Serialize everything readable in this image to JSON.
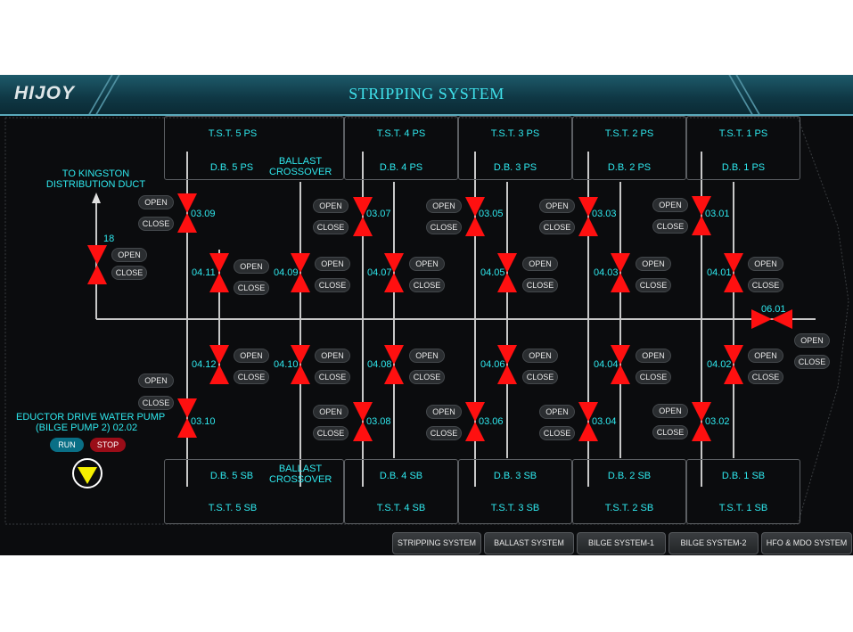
{
  "header": {
    "logo": "HIJOY",
    "title": "STRIPPING SYSTEM"
  },
  "tanks": {
    "tst_ps": [
      "T.S.T. 5 PS",
      "T.S.T. 4 PS",
      "T.S.T. 3 PS",
      "T.S.T. 2 PS",
      "T.S.T. 1 PS"
    ],
    "db_ps": [
      "D.B. 5 PS",
      "D.B. 4 PS",
      "D.B. 3 PS",
      "D.B. 2 PS",
      "D.B. 1 PS"
    ],
    "db_sb": [
      "D.B. 5 SB",
      "D.B. 4 SB",
      "D.B. 3 SB",
      "D.B. 2 SB",
      "D.B. 1 SB"
    ],
    "tst_sb": [
      "T.S.T. 5 SB",
      "T.S.T. 4 SB",
      "T.S.T. 3 SB",
      "T.S.T. 2 SB",
      "T.S.T. 1 SB"
    ],
    "ballast_crossover_top": [
      "BALLAST",
      "CROSSOVER"
    ],
    "ballast_crossover_bottom": [
      "BALLAST",
      "CROSSOVER"
    ]
  },
  "kingston": [
    "TO KINGSTON",
    "DISTRIBUTION DUCT"
  ],
  "valves": {
    "v18": "18",
    "v0309": "03.09",
    "v0307": "03.07",
    "v0305": "03.05",
    "v0303": "03.03",
    "v0301": "03.01",
    "v0411": "04.11",
    "v0409": "04.09",
    "v0407": "04.07",
    "v0405": "04.05",
    "v0403": "04.03",
    "v0401": "04.01",
    "v0601": "06.01",
    "v0412": "04.12",
    "v0410": "04.10",
    "v0408": "04.08",
    "v0406": "04.06",
    "v0404": "04.04",
    "v0402": "04.02",
    "v0310": "03.10",
    "v0308": "03.08",
    "v0306": "03.06",
    "v0304": "03.04",
    "v0302": "03.02"
  },
  "buttons": {
    "open": "OPEN",
    "close": "CLOSE"
  },
  "pump": {
    "label_1": "EDUCTOR DRIVE WATER PUMP",
    "label_2": "(BILGE PUMP 2)  02.02",
    "run": "RUN",
    "stop": "STOP"
  },
  "nav": [
    "STRIPPING SYSTEM",
    "BALLAST SYSTEM",
    "BILGE SYSTEM-1",
    "BILGE SYSTEM-2",
    "HFO & MDO SYSTEM"
  ],
  "colors": {
    "valve": "#ff1010",
    "label": "#2fe8ee",
    "header": "#0f3744",
    "run": "#0a6f86",
    "stop": "#9a0d18"
  }
}
